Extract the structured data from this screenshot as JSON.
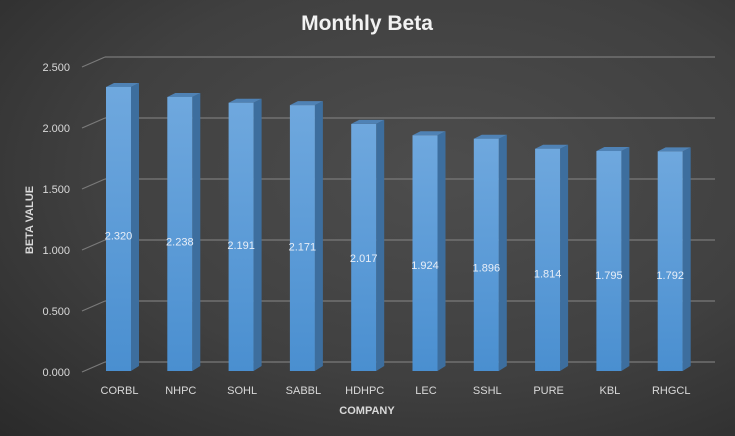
{
  "chart_data": {
    "type": "bar",
    "title": "Monthly Beta",
    "xlabel": "COMPANY",
    "ylabel": "BETA VALUE",
    "categories": [
      "CORBL",
      "NHPC",
      "SOHL",
      "SABBL",
      "HDHPC",
      "LEC",
      "SSHL",
      "PURE",
      "KBL",
      "RHGCL"
    ],
    "values": [
      2.32,
      2.238,
      2.191,
      2.171,
      2.017,
      1.924,
      1.896,
      1.814,
      1.795,
      1.792
    ],
    "data_labels": [
      "2.320",
      "2.238",
      "2.191",
      "2.171",
      "2.017",
      "1.924",
      "1.896",
      "1.814",
      "1.795",
      "1.792"
    ],
    "ylim": [
      0,
      2.5
    ],
    "yticks": [
      "0.000",
      "0.500",
      "1.000",
      "1.500",
      "2.000",
      "2.500"
    ],
    "grid": true,
    "legend": "none",
    "bar_color": "#5b9bd5"
  }
}
